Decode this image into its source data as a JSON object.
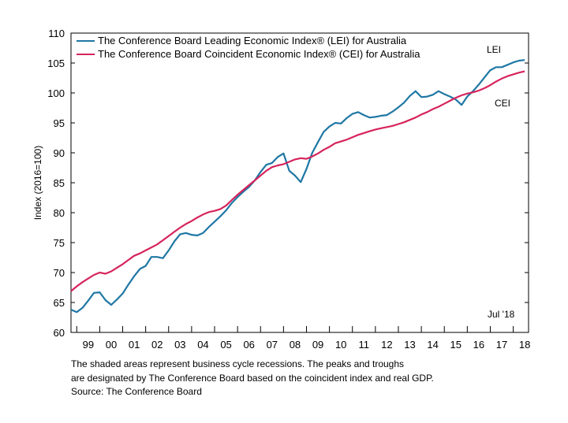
{
  "chart_data": {
    "type": "line",
    "xlabel": "",
    "ylabel": "Index (2016=100)",
    "ylim": [
      60,
      110
    ],
    "y_ticks": [
      60,
      65,
      70,
      75,
      80,
      85,
      90,
      95,
      100,
      105,
      110
    ],
    "x_ticks": [
      "99",
      "00",
      "01",
      "02",
      "03",
      "04",
      "05",
      "06",
      "07",
      "08",
      "09",
      "10",
      "11",
      "12",
      "13",
      "14",
      "15",
      "16",
      "17",
      "18"
    ],
    "x_range": [
      "1998-10",
      "2018-09"
    ],
    "grid": false,
    "legend_position": "top-left",
    "date_label": "Jul '18",
    "series": [
      {
        "name": "The Conference Board Leading Economic Index® (LEI) for Australia",
        "short_label": "LEI",
        "color": "#1f77a4",
        "points": [
          [
            "1998-10",
            63.8
          ],
          [
            "1999-01",
            63.4
          ],
          [
            "1999-04",
            64.1
          ],
          [
            "1999-07",
            65.3
          ],
          [
            "1999-10",
            66.6
          ],
          [
            "2000-01",
            66.7
          ],
          [
            "2000-04",
            65.4
          ],
          [
            "2000-07",
            64.6
          ],
          [
            "2000-10",
            65.5
          ],
          [
            "2001-01",
            66.5
          ],
          [
            "2001-04",
            68.0
          ],
          [
            "2001-07",
            69.4
          ],
          [
            "2001-10",
            70.6
          ],
          [
            "2002-01",
            71.1
          ],
          [
            "2002-04",
            72.6
          ],
          [
            "2002-07",
            72.6
          ],
          [
            "2002-10",
            72.4
          ],
          [
            "2003-01",
            73.7
          ],
          [
            "2003-04",
            75.2
          ],
          [
            "2003-07",
            76.4
          ],
          [
            "2003-10",
            76.6
          ],
          [
            "2004-01",
            76.3
          ],
          [
            "2004-04",
            76.2
          ],
          [
            "2004-07",
            76.6
          ],
          [
            "2004-10",
            77.6
          ],
          [
            "2005-01",
            78.5
          ],
          [
            "2005-04",
            79.4
          ],
          [
            "2005-07",
            80.4
          ],
          [
            "2005-10",
            81.6
          ],
          [
            "2006-01",
            82.6
          ],
          [
            "2006-04",
            83.5
          ],
          [
            "2006-07",
            84.3
          ],
          [
            "2006-10",
            85.4
          ],
          [
            "2007-01",
            86.8
          ],
          [
            "2007-04",
            88.0
          ],
          [
            "2007-07",
            88.3
          ],
          [
            "2007-10",
            89.3
          ],
          [
            "2008-01",
            89.9
          ],
          [
            "2008-04",
            87.0
          ],
          [
            "2008-07",
            86.2
          ],
          [
            "2008-10",
            85.1
          ],
          [
            "2009-01",
            87.3
          ],
          [
            "2009-04",
            90.0
          ],
          [
            "2009-07",
            91.8
          ],
          [
            "2009-10",
            93.5
          ],
          [
            "2010-01",
            94.4
          ],
          [
            "2010-04",
            95.0
          ],
          [
            "2010-07",
            94.9
          ],
          [
            "2010-10",
            95.8
          ],
          [
            "2011-01",
            96.5
          ],
          [
            "2011-04",
            96.8
          ],
          [
            "2011-07",
            96.3
          ],
          [
            "2011-10",
            95.9
          ],
          [
            "2012-01",
            96.0
          ],
          [
            "2012-04",
            96.2
          ],
          [
            "2012-07",
            96.3
          ],
          [
            "2012-10",
            96.9
          ],
          [
            "2013-01",
            97.6
          ],
          [
            "2013-04",
            98.4
          ],
          [
            "2013-07",
            99.5
          ],
          [
            "2013-10",
            100.3
          ],
          [
            "2014-01",
            99.3
          ],
          [
            "2014-04",
            99.4
          ],
          [
            "2014-07",
            99.7
          ],
          [
            "2014-10",
            100.3
          ],
          [
            "2015-01",
            99.8
          ],
          [
            "2015-04",
            99.4
          ],
          [
            "2015-07",
            98.9
          ],
          [
            "2015-10",
            98.0
          ],
          [
            "2016-01",
            99.4
          ],
          [
            "2016-04",
            100.3
          ],
          [
            "2016-07",
            101.4
          ],
          [
            "2016-10",
            102.6
          ],
          [
            "2017-01",
            103.8
          ],
          [
            "2017-04",
            104.3
          ],
          [
            "2017-07",
            104.3
          ],
          [
            "2017-10",
            104.7
          ],
          [
            "2018-01",
            105.1
          ],
          [
            "2018-04",
            105.4
          ],
          [
            "2018-07",
            105.5
          ]
        ]
      },
      {
        "name": "The Conference Board Coincident Economic Index® (CEI) for Australia",
        "short_label": "CEI",
        "color": "#d6245c",
        "points": [
          [
            "1998-10",
            66.9
          ],
          [
            "1999-01",
            67.7
          ],
          [
            "1999-04",
            68.4
          ],
          [
            "1999-07",
            69.0
          ],
          [
            "1999-10",
            69.6
          ],
          [
            "2000-01",
            70.0
          ],
          [
            "2000-04",
            69.8
          ],
          [
            "2000-07",
            70.2
          ],
          [
            "2000-10",
            70.8
          ],
          [
            "2001-01",
            71.4
          ],
          [
            "2001-04",
            72.1
          ],
          [
            "2001-07",
            72.8
          ],
          [
            "2001-10",
            73.2
          ],
          [
            "2002-01",
            73.7
          ],
          [
            "2002-04",
            74.2
          ],
          [
            "2002-07",
            74.7
          ],
          [
            "2002-10",
            75.4
          ],
          [
            "2003-01",
            76.1
          ],
          [
            "2003-04",
            76.8
          ],
          [
            "2003-07",
            77.5
          ],
          [
            "2003-10",
            78.1
          ],
          [
            "2004-01",
            78.6
          ],
          [
            "2004-04",
            79.2
          ],
          [
            "2004-07",
            79.7
          ],
          [
            "2004-10",
            80.1
          ],
          [
            "2005-01",
            80.3
          ],
          [
            "2005-04",
            80.6
          ],
          [
            "2005-07",
            81.2
          ],
          [
            "2005-10",
            82.1
          ],
          [
            "2006-01",
            83.0
          ],
          [
            "2006-04",
            83.8
          ],
          [
            "2006-07",
            84.6
          ],
          [
            "2006-10",
            85.4
          ],
          [
            "2007-01",
            86.2
          ],
          [
            "2007-04",
            87.0
          ],
          [
            "2007-07",
            87.6
          ],
          [
            "2007-10",
            87.9
          ],
          [
            "2008-01",
            88.1
          ],
          [
            "2008-04",
            88.5
          ],
          [
            "2008-07",
            88.9
          ],
          [
            "2008-10",
            89.1
          ],
          [
            "2009-01",
            89.0
          ],
          [
            "2009-04",
            89.4
          ],
          [
            "2009-07",
            89.9
          ],
          [
            "2009-10",
            90.5
          ],
          [
            "2010-01",
            91.0
          ],
          [
            "2010-04",
            91.6
          ],
          [
            "2010-07",
            91.9
          ],
          [
            "2010-10",
            92.2
          ],
          [
            "2011-01",
            92.6
          ],
          [
            "2011-04",
            93.0
          ],
          [
            "2011-07",
            93.3
          ],
          [
            "2011-10",
            93.6
          ],
          [
            "2012-01",
            93.9
          ],
          [
            "2012-04",
            94.1
          ],
          [
            "2012-07",
            94.3
          ],
          [
            "2012-10",
            94.5
          ],
          [
            "2013-01",
            94.8
          ],
          [
            "2013-04",
            95.1
          ],
          [
            "2013-07",
            95.5
          ],
          [
            "2013-10",
            95.9
          ],
          [
            "2014-01",
            96.4
          ],
          [
            "2014-04",
            96.8
          ],
          [
            "2014-07",
            97.3
          ],
          [
            "2014-10",
            97.7
          ],
          [
            "2015-01",
            98.2
          ],
          [
            "2015-04",
            98.7
          ],
          [
            "2015-07",
            99.2
          ],
          [
            "2015-10",
            99.6
          ],
          [
            "2016-01",
            99.9
          ],
          [
            "2016-04",
            100.1
          ],
          [
            "2016-07",
            100.4
          ],
          [
            "2016-10",
            100.8
          ],
          [
            "2017-01",
            101.3
          ],
          [
            "2017-04",
            101.9
          ],
          [
            "2017-07",
            102.4
          ],
          [
            "2017-10",
            102.8
          ],
          [
            "2018-01",
            103.1
          ],
          [
            "2018-04",
            103.4
          ],
          [
            "2018-07",
            103.6
          ]
        ]
      }
    ]
  },
  "notes": {
    "line1": "The shaded areas represent business cycle recessions. The peaks and troughs",
    "line2": "are designated by The Conference Board based on the coincident index and real GDP.",
    "source": "Source: The Conference Board"
  }
}
